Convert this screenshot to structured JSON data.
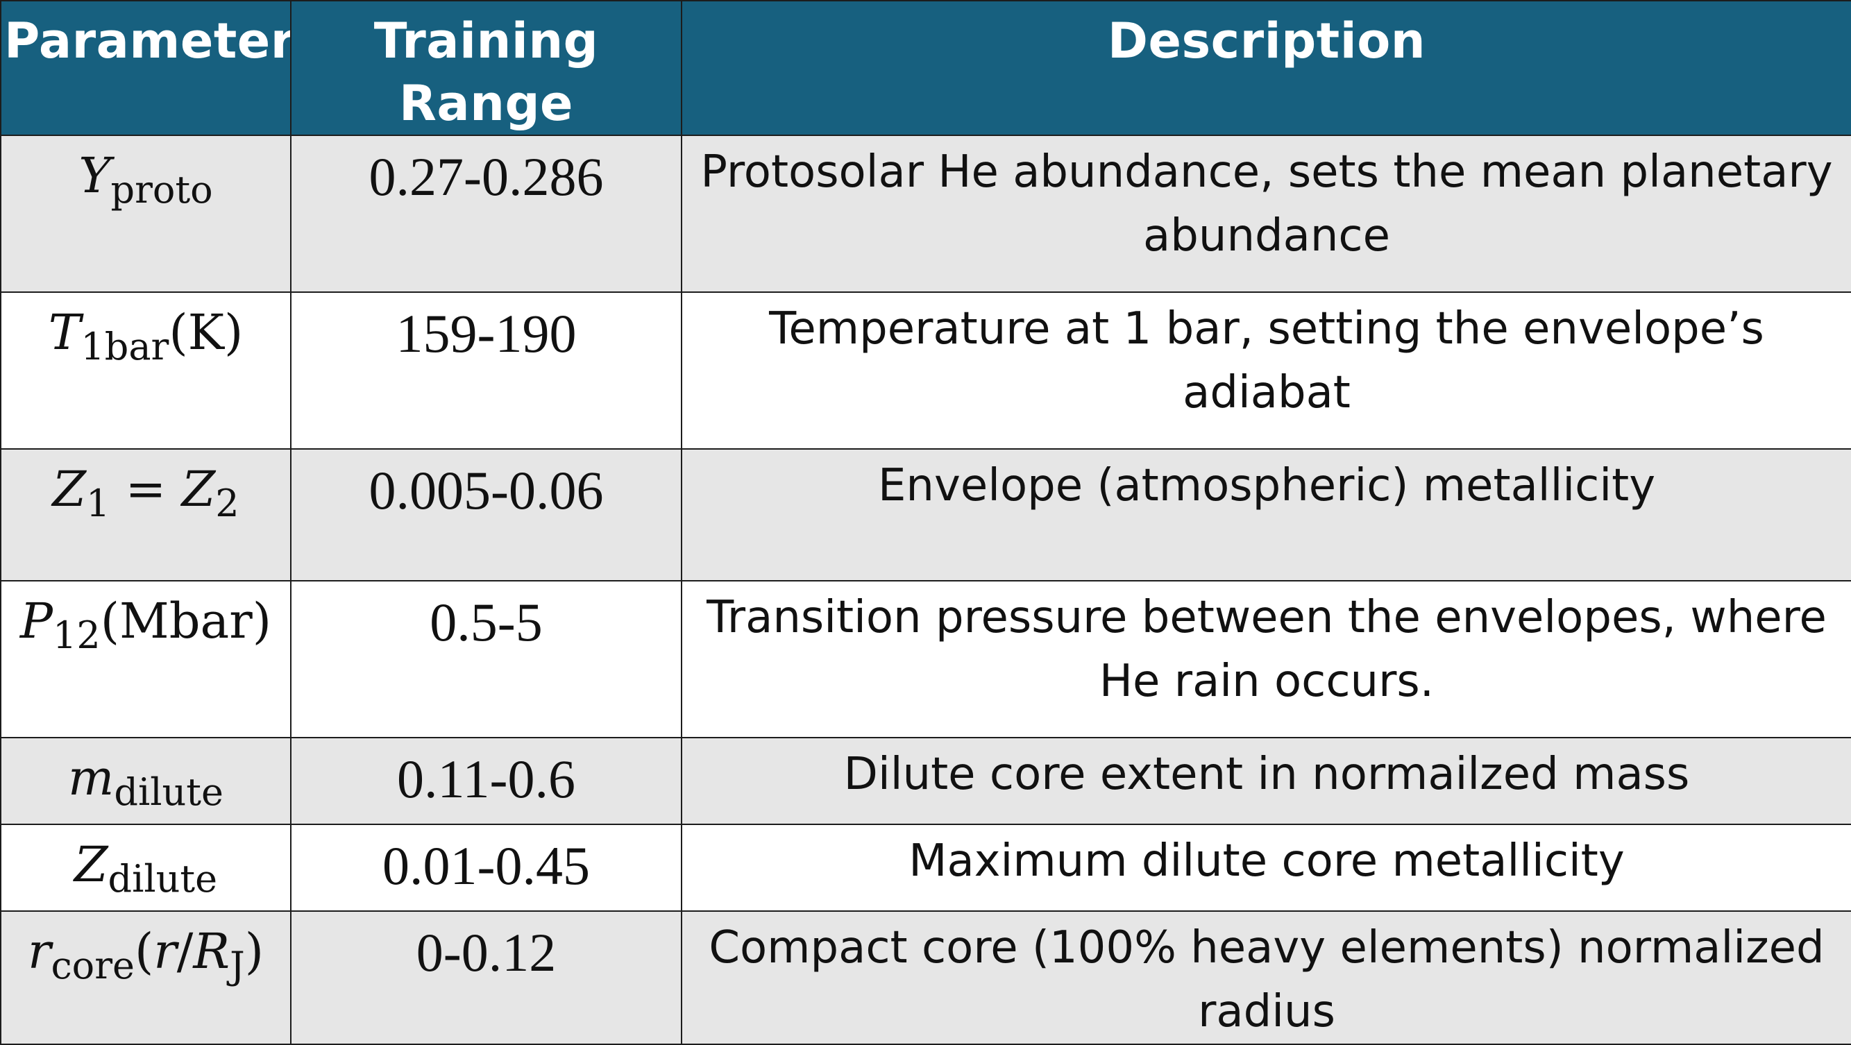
{
  "table": {
    "headers": [
      "Parameter",
      "Training Range",
      "Description"
    ],
    "rows": [
      {
        "param_symbol": "Y",
        "param_sub": "proto",
        "param_unit": "",
        "range": "0.27-0.286",
        "description": "Protosolar He abundance, sets the mean planetary abundance"
      },
      {
        "param_symbol": "T",
        "param_sub": "1bar",
        "param_unit": "(K)",
        "range": "159-190",
        "description": "Temperature at 1 bar, setting the envelope’s adiabat"
      },
      {
        "param_symbol": "Z",
        "param_sub": "1",
        "param_eq": "=",
        "param_symbol2": "Z",
        "param_sub2": "2",
        "range": "0.005-0.06",
        "description": "Envelope (atmospheric) metallicity"
      },
      {
        "param_symbol": "P",
        "param_sub": "12",
        "param_unit": "(Mbar)",
        "range": "0.5-5",
        "description": "Transition pressure between the envelopes, where He rain occurs."
      },
      {
        "param_symbol": "m",
        "param_sub": "dilute",
        "param_unit": "",
        "range": "0.11-0.6",
        "description": "Dilute core extent in normailzed mass"
      },
      {
        "param_symbol": "Z",
        "param_sub": "dilute",
        "param_unit": "",
        "range": "0.01-0.45",
        "description": "Maximum dilute core metallicity"
      },
      {
        "param_symbol": "r",
        "param_sub": "core",
        "param_unit_open": "(",
        "param_unit_r": "r",
        "param_unit_slash": "/",
        "param_unit_R": "R",
        "param_unit_Rsub": "J",
        "param_unit_close": ")",
        "range": "0-0.12",
        "description": "Compact core (100% heavy elements) normalized radius"
      }
    ]
  }
}
